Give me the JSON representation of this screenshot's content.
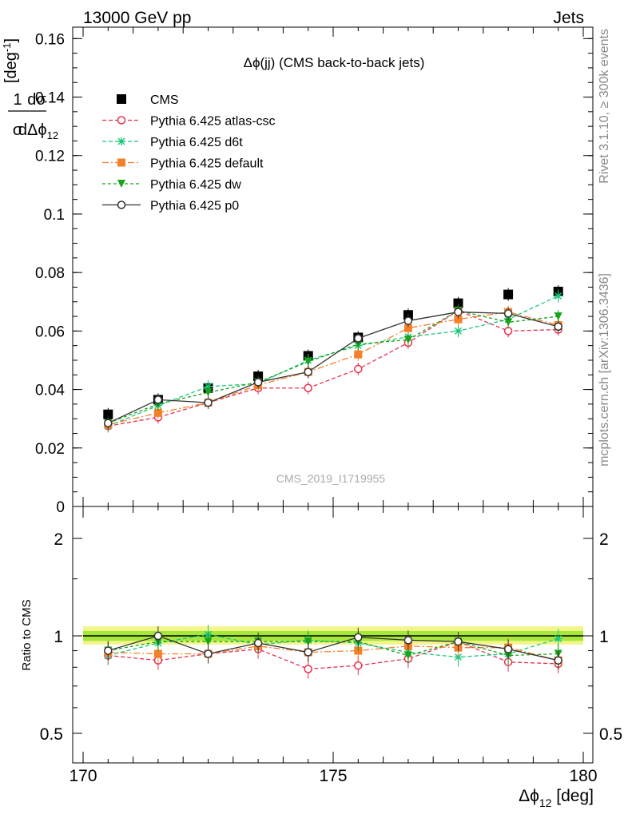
{
  "header": {
    "left": "13000 GeV pp",
    "right": "Jets"
  },
  "side_labels": {
    "rivet": "Rivet 3.1.10, ≥ 300k events",
    "mcplots": "mcplots.cern.ch [arXiv:1306.3436]"
  },
  "analysis_id": "CMS_2019_I1719955",
  "colors": {
    "cms": "#000000",
    "atlas_csc": "#e8304e",
    "d6t": "#19c77c",
    "default": "#f5802a",
    "dw": "#18a318",
    "p0": "#333333",
    "band_inner": "#a6e83a",
    "band_outer": "#f2f58a"
  },
  "chart_data": [
    {
      "type": "line",
      "title": "Δϕ(jj) (CMS back-to-back jets)",
      "ylabel": "1/σ dσ/dΔϕ₁₂ [deg⁻¹]",
      "xlim": [
        170,
        180
      ],
      "ylim": [
        0,
        0.162
      ],
      "yticks": [
        "0",
        "0.02",
        "0.04",
        "0.06",
        "0.08",
        "0.1",
        "0.12",
        "0.14",
        "0.16"
      ],
      "x": [
        170.5,
        171.5,
        172.5,
        173.5,
        174.5,
        175.5,
        176.5,
        177.5,
        178.5,
        179.5
      ],
      "series": [
        {
          "name": "CMS",
          "style": "square",
          "values": [
            0.0315,
            0.0365,
            0.0405,
            0.0445,
            0.0515,
            0.0578,
            0.0655,
            0.0695,
            0.0725,
            0.0735
          ]
        },
        {
          "name": "Pythia 6.425 atlas-csc",
          "style": "open-circle-dash",
          "values": [
            0.0275,
            0.0305,
            0.0355,
            0.0405,
            0.0405,
            0.047,
            0.056,
            0.067,
            0.06,
            0.0605
          ]
        },
        {
          "name": "Pythia 6.425 d6t",
          "style": "star-dash",
          "values": [
            0.0275,
            0.0345,
            0.041,
            0.042,
            0.05,
            0.055,
            0.058,
            0.06,
            0.064,
            0.072
          ]
        },
        {
          "name": "Pythia 6.425 default",
          "style": "filled-square-dashdot",
          "values": [
            0.028,
            0.032,
            0.0355,
            0.0415,
            0.046,
            0.052,
            0.061,
            0.064,
            0.0665,
            0.062
          ]
        },
        {
          "name": "Pythia 6.425 dw",
          "style": "triangle-down-dash",
          "values": [
            0.0285,
            0.035,
            0.039,
            0.0425,
            0.0495,
            0.0555,
            0.057,
            0.067,
            0.063,
            0.065
          ]
        },
        {
          "name": "Pythia 6.425 p0",
          "style": "open-circle-solid",
          "values": [
            0.0285,
            0.0365,
            0.0355,
            0.0425,
            0.046,
            0.0575,
            0.0635,
            0.0665,
            0.066,
            0.0615
          ]
        }
      ]
    },
    {
      "type": "line",
      "ylabel": "Ratio to CMS",
      "xlabel": "Δϕ₁₂ [deg]",
      "xlim": [
        170,
        180
      ],
      "ylim": [
        0.4,
        2.4
      ],
      "ylog": true,
      "yticks": [
        "0.5",
        "1",
        "2"
      ],
      "xticks": [
        "170",
        "175",
        "180"
      ],
      "x": [
        170.5,
        171.5,
        172.5,
        173.5,
        174.5,
        175.5,
        176.5,
        177.5,
        178.5,
        179.5
      ],
      "series": [
        {
          "name": "CMS",
          "values": [
            1,
            1,
            1,
            1,
            1,
            1,
            1,
            1,
            1,
            1
          ]
        },
        {
          "name": "Pythia 6.425 atlas-csc",
          "values": [
            0.87,
            0.84,
            0.88,
            0.91,
            0.79,
            0.81,
            0.85,
            0.96,
            0.83,
            0.82
          ]
        },
        {
          "name": "Pythia 6.425 d6t",
          "values": [
            0.87,
            0.95,
            1.01,
            0.94,
            0.97,
            0.95,
            0.89,
            0.86,
            0.88,
            0.98
          ]
        },
        {
          "name": "Pythia 6.425 default",
          "values": [
            0.89,
            0.88,
            0.88,
            0.93,
            0.89,
            0.9,
            0.93,
            0.92,
            0.92,
            0.84
          ]
        },
        {
          "name": "Pythia 6.425 dw",
          "values": [
            0.9,
            0.96,
            0.96,
            0.96,
            0.96,
            0.96,
            0.87,
            0.96,
            0.87,
            0.88
          ]
        },
        {
          "name": "Pythia 6.425 p0",
          "values": [
            0.9,
            1.0,
            0.88,
            0.95,
            0.89,
            0.99,
            0.97,
            0.96,
            0.91,
            0.84
          ]
        }
      ]
    }
  ]
}
